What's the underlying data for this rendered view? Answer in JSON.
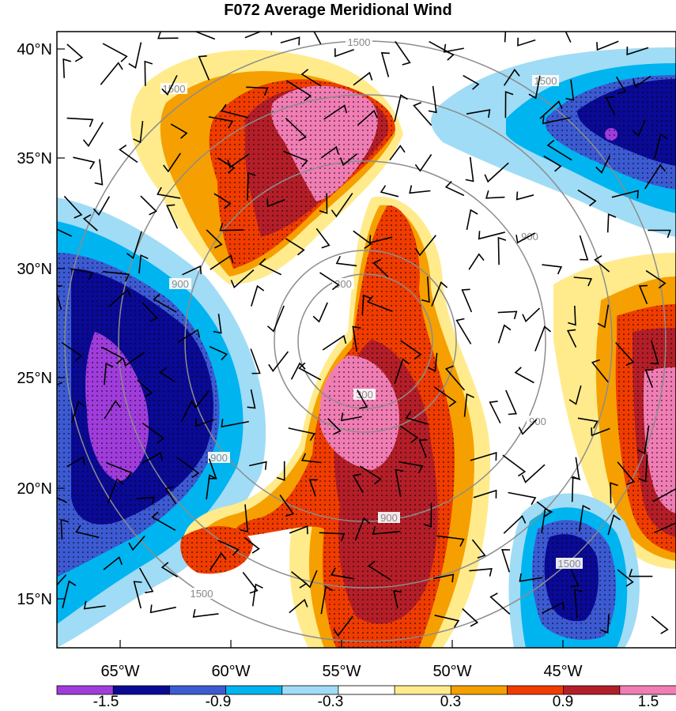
{
  "title": "F072 Average Meridional Wind",
  "axes": {
    "lat_labels": [
      "40°N",
      "35°N",
      "30°N",
      "25°N",
      "20°N",
      "15°N"
    ],
    "lon_labels": [
      "65°W",
      "60°W",
      "55°W",
      "50°W",
      "45°W"
    ]
  },
  "rings": {
    "labels": [
      "300",
      "900",
      "1500"
    ],
    "color": "#8c8c8c"
  },
  "colorbar": {
    "labels": [
      "-1.5",
      "-0.9",
      "-0.3",
      "0.3",
      "0.9",
      "1.5"
    ],
    "colors": [
      "#a03cdc",
      "#0a0a96",
      "#3c5ad2",
      "#00b4f0",
      "#a0dcf5",
      "#ffffff",
      "#ffeb8c",
      "#f5a000",
      "#f03c00",
      "#b41e28",
      "#f07db4"
    ]
  },
  "palette": {
    "purple": "#a03cdc",
    "navy": "#0a0a96",
    "blue": "#3c5ad2",
    "cyan": "#00b4f0",
    "lightblue": "#a0dcf5",
    "lightyellow": "#ffeb8c",
    "orange": "#f5a000",
    "redorange": "#f03c00",
    "darkred": "#b41e28",
    "pink": "#f07db4"
  }
}
